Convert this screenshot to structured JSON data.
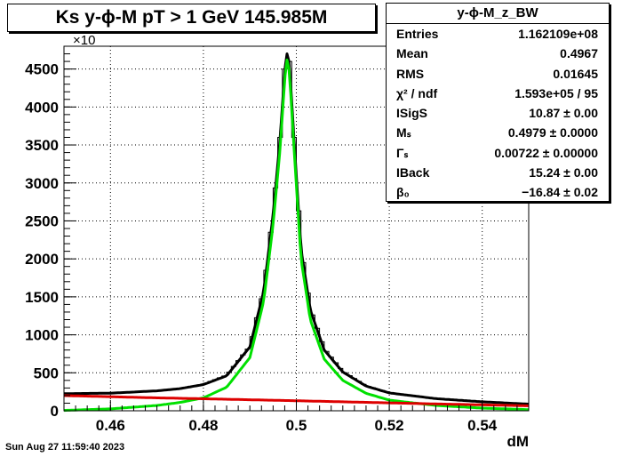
{
  "title": "Ks y-ϕ-M pT > 1 GeV  145.985M",
  "stats": {
    "name": "y-ϕ-M_z_BW",
    "rows": [
      {
        "label": "Entries",
        "value": "1.162109e+08"
      },
      {
        "label": "Mean",
        "value": "0.4967"
      },
      {
        "label": "RMS",
        "value": "0.01645"
      },
      {
        "label": "χ² / ndf",
        "value": "1.593e+05 / 95"
      },
      {
        "label": "ISigS",
        "value": "10.87 ± 0.00"
      },
      {
        "label": "Mₛ",
        "value": "0.4979 ± 0.0000"
      },
      {
        "label": "Γₛ",
        "value": "0.00722 ± 0.00000"
      },
      {
        "label": "IBack",
        "value": "15.24 ± 0.00"
      },
      {
        "label": "β₀",
        "value": "−16.84 ± 0.02"
      }
    ]
  },
  "datestamp": "Sun Aug 27 11:59:40 2023",
  "chart_data": {
    "type": "line",
    "title": "Ks y-ϕ-M pT > 1 GeV  145.985M",
    "xlabel": "dM",
    "ylabel": "",
    "y_multiplier_label": "×10",
    "xlim": [
      0.45,
      0.55
    ],
    "ylim": [
      0,
      4800
    ],
    "x_ticks": [
      0.46,
      0.48,
      0.5,
      0.52,
      0.54
    ],
    "x_tick_labels": [
      "0.46",
      "0.48",
      "0.5",
      "0.52",
      "0.54"
    ],
    "y_ticks": [
      0,
      500,
      1000,
      1500,
      2000,
      2500,
      3000,
      3500,
      4000,
      4500
    ],
    "y_tick_labels": [
      "0",
      "500",
      "1000",
      "1500",
      "2000",
      "2500",
      "3000",
      "3500",
      "4000",
      "4500"
    ],
    "grid": true,
    "series": [
      {
        "kind": "histogram",
        "color": "#000000",
        "x": [
          0.45,
          0.46,
          0.47,
          0.475,
          0.48,
          0.485,
          0.49,
          0.493,
          0.495,
          0.4965,
          0.4975,
          0.498,
          0.4985,
          0.4995,
          0.501,
          0.503,
          0.506,
          0.51,
          0.515,
          0.52,
          0.53,
          0.54,
          0.55
        ],
        "y": [
          225,
          235,
          265,
          295,
          350,
          470,
          850,
          1600,
          2600,
          3600,
          4500,
          4720,
          4600,
          3600,
          2150,
          1350,
          820,
          520,
          330,
          240,
          165,
          120,
          90
        ]
      },
      {
        "kind": "fit-total",
        "color": "#000000",
        "x": [
          0.45,
          0.46,
          0.47,
          0.475,
          0.48,
          0.485,
          0.49,
          0.493,
          0.495,
          0.4965,
          0.4975,
          0.498,
          0.4985,
          0.4995,
          0.501,
          0.503,
          0.506,
          0.51,
          0.515,
          0.52,
          0.53,
          0.54,
          0.55
        ],
        "y": [
          225,
          232,
          262,
          292,
          345,
          460,
          840,
          1580,
          2580,
          3580,
          4480,
          4700,
          4580,
          3580,
          2130,
          1330,
          800,
          510,
          325,
          235,
          160,
          118,
          88
        ]
      },
      {
        "kind": "fit-signal",
        "color": "#00e000",
        "x": [
          0.45,
          0.46,
          0.47,
          0.475,
          0.48,
          0.485,
          0.49,
          0.493,
          0.495,
          0.4965,
          0.4975,
          0.498,
          0.4985,
          0.4995,
          0.501,
          0.503,
          0.506,
          0.51,
          0.515,
          0.52,
          0.53,
          0.54,
          0.55
        ],
        "y": [
          5,
          25,
          70,
          110,
          170,
          310,
          700,
          1450,
          2450,
          3450,
          4370,
          4620,
          4480,
          3460,
          2000,
          1200,
          680,
          400,
          230,
          140,
          70,
          35,
          15
        ]
      },
      {
        "kind": "fit-background",
        "color": "#dd0000",
        "x": [
          0.45,
          0.46,
          0.47,
          0.48,
          0.49,
          0.5,
          0.51,
          0.52,
          0.53,
          0.54,
          0.55
        ],
        "y": [
          200,
          185,
          170,
          158,
          145,
          132,
          118,
          104,
          90,
          78,
          65
        ]
      }
    ]
  }
}
